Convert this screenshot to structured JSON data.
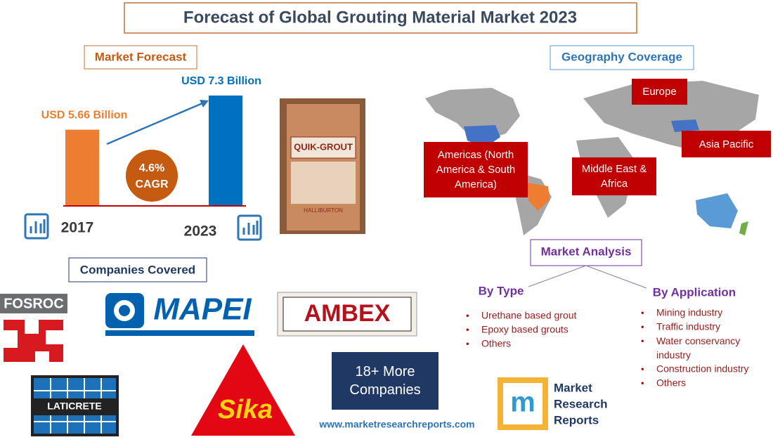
{
  "title": "Forecast of Global Grouting Material Market 2023",
  "market_forecast": {
    "heading": "Market Forecast",
    "chart_data": {
      "type": "bar",
      "categories": [
        "2017",
        "2023"
      ],
      "values": [
        5.66,
        7.3
      ],
      "value_labels": [
        "USD 5.66 Billion",
        "USD 7.3 Billion"
      ],
      "colors": [
        "#ed7d31",
        "#0070c0"
      ],
      "ylim": [
        2,
        7.5
      ]
    },
    "cagr": {
      "value": "4.6%",
      "label": "CAGR"
    }
  },
  "product_image": {
    "brand": "QUIK-GROUT",
    "maker": "HALLIBURTON"
  },
  "geography": {
    "heading": "Geography Coverage",
    "regions": [
      "Europe",
      "Americas (North America & South America)",
      "Middle East & Africa",
      "Asia Pacific"
    ]
  },
  "market_analysis": {
    "heading": "Market Analysis",
    "by_type": {
      "heading": "By Type",
      "items": [
        "Urethane based grout",
        "Epoxy based grouts",
        "Others"
      ]
    },
    "by_application": {
      "heading": "By Application",
      "items": [
        "Mining industry",
        "Traffic industry",
        "Water conservancy industry",
        "Construction industry",
        "Others"
      ]
    }
  },
  "companies": {
    "heading": "Companies Covered",
    "logos": [
      "FOSROC",
      "MAPEI",
      "AMBEX",
      "LATICRETE",
      "Sika"
    ],
    "more": "18+ More Companies"
  },
  "footer": {
    "url": "www.marketresearchreports.com",
    "logo_text": [
      "Market",
      "Research",
      "Reports"
    ]
  }
}
